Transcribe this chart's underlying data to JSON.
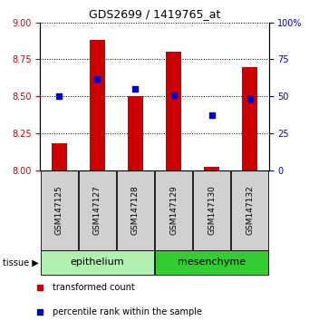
{
  "title": "GDS2699 / 1419765_at",
  "samples": [
    "GSM147125",
    "GSM147127",
    "GSM147128",
    "GSM147129",
    "GSM147130",
    "GSM147132"
  ],
  "red_values": [
    8.18,
    8.88,
    8.5,
    8.8,
    8.02,
    8.7
  ],
  "blue_values_pct": [
    50,
    62,
    55,
    51,
    37,
    48
  ],
  "ylim_left": [
    8.0,
    9.0
  ],
  "ylim_right": [
    0,
    100
  ],
  "yticks_left": [
    8.0,
    8.25,
    8.5,
    8.75,
    9.0
  ],
  "yticks_right": [
    0,
    25,
    50,
    75,
    100
  ],
  "groups": [
    {
      "label": "epithelium",
      "indices": [
        0,
        1,
        2
      ],
      "color": "#b2f0b2"
    },
    {
      "label": "mesenchyme",
      "indices": [
        3,
        4,
        5
      ],
      "color": "#33cc33"
    }
  ],
  "bar_color": "#cc0000",
  "dot_color": "#0000cc",
  "bar_width": 0.4,
  "tissue_label": "tissue",
  "legend_red": "transformed count",
  "legend_blue": "percentile rank within the sample",
  "left_tick_color": "#cc0000",
  "right_tick_color": "#0000cc",
  "grid_style": "dotted",
  "grid_color": "#000000",
  "background_color": "#ffffff",
  "sample_area_color": "#d0d0d0"
}
